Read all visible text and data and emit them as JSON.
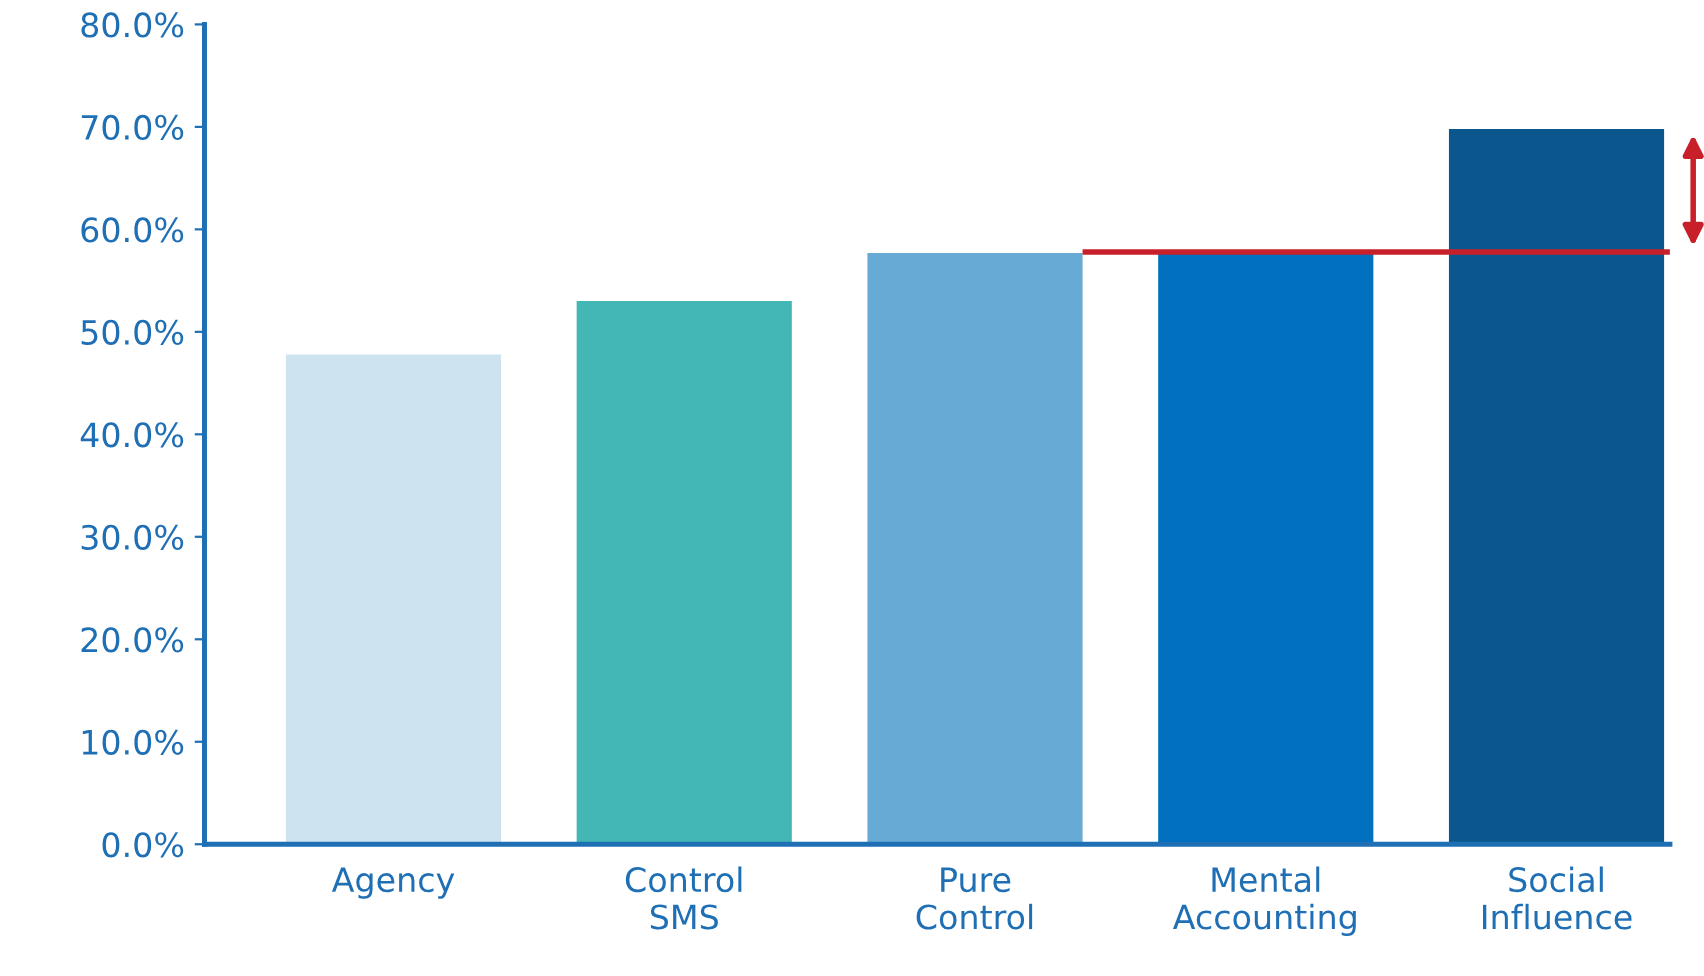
{
  "chart_data": {
    "type": "bar",
    "categories": [
      "Agency",
      "Control\nSMS",
      "Pure\nControl",
      "Mental\nAccounting",
      "Social\nInfluence"
    ],
    "values": [
      47.8,
      53.0,
      57.7,
      57.7,
      69.8
    ],
    "colors": [
      "#cde3f0",
      "#43b7b5",
      "#68aad6",
      "#0070bf",
      "#0c568e"
    ],
    "ylim": [
      0,
      80
    ],
    "yticks": [
      {
        "value": 0,
        "label": "0.0%"
      },
      {
        "value": 10,
        "label": "10.0%"
      },
      {
        "value": 20,
        "label": "20.0%"
      },
      {
        "value": 30,
        "label": "30.0%"
      },
      {
        "value": 40,
        "label": "40.0%"
      },
      {
        "value": 50,
        "label": "50.0%"
      },
      {
        "value": 60,
        "label": "60.0%"
      },
      {
        "value": 70,
        "label": "70.0%"
      },
      {
        "value": 80,
        "label": "80.0%"
      }
    ],
    "ref_lines": [
      {
        "axis": "y",
        "value": 57.8,
        "label": null,
        "color": "#c8202a"
      }
    ],
    "grid": false,
    "legend": false
  }
}
